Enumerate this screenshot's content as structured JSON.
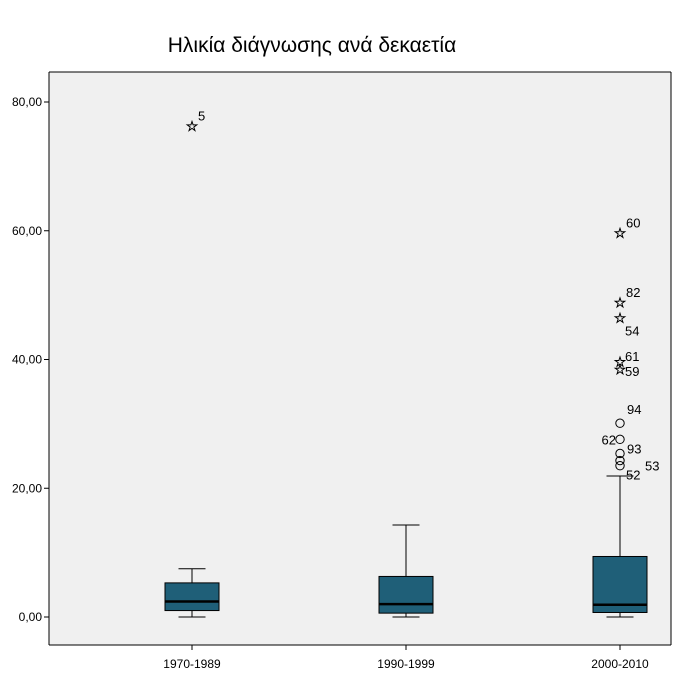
{
  "chart_data": {
    "type": "boxplot",
    "title": "Ηλικία διάγνωσης ανά δεκαετία",
    "xlabel": "",
    "ylabel": "",
    "ylim": [
      -4,
      84
    ],
    "yticks": [
      0,
      20,
      40,
      60,
      80
    ],
    "ytick_labels": [
      "0,00",
      "20,00",
      "40,00",
      "60,00",
      "80,00"
    ],
    "grid": false,
    "background_color": "#f0f0f0",
    "box_color": "#1f5f78",
    "categories": [
      "1970-1989",
      "1990-1999",
      "2000-2010"
    ],
    "boxes": [
      {
        "category": "1970-1989",
        "whisker_low": 0,
        "q1": 1,
        "median": 2.4,
        "q3": 5.3,
        "whisker_high": 7.5,
        "outliers": [
          {
            "label": "5",
            "value": 76.2,
            "marker": "star"
          }
        ]
      },
      {
        "category": "1990-1999",
        "whisker_low": 0,
        "q1": 0.6,
        "median": 2,
        "q3": 6.3,
        "whisker_high": 14.3,
        "outliers": []
      },
      {
        "category": "2000-2010",
        "whisker_low": 0,
        "q1": 0.7,
        "median": 1.9,
        "q3": 9.4,
        "whisker_high": 21.9,
        "outliers": [
          {
            "label": "60",
            "value": 59.6,
            "marker": "star"
          },
          {
            "label": "82",
            "value": 48.8,
            "marker": "star"
          },
          {
            "label": "54",
            "value": 46.4,
            "marker": "star"
          },
          {
            "label": "61",
            "value": 39.6,
            "marker": "star"
          },
          {
            "label": "59",
            "value": 38.4,
            "marker": "star"
          },
          {
            "label": "94",
            "value": 30.1,
            "marker": "circle"
          },
          {
            "label": "62",
            "value": 27.6,
            "marker": "circle"
          },
          {
            "label": "93",
            "value": 25.4,
            "marker": "circle"
          },
          {
            "label": "53",
            "value": 24.3,
            "marker": "circle"
          },
          {
            "label": "52",
            "value": 23.5,
            "marker": "circle"
          }
        ]
      }
    ]
  }
}
